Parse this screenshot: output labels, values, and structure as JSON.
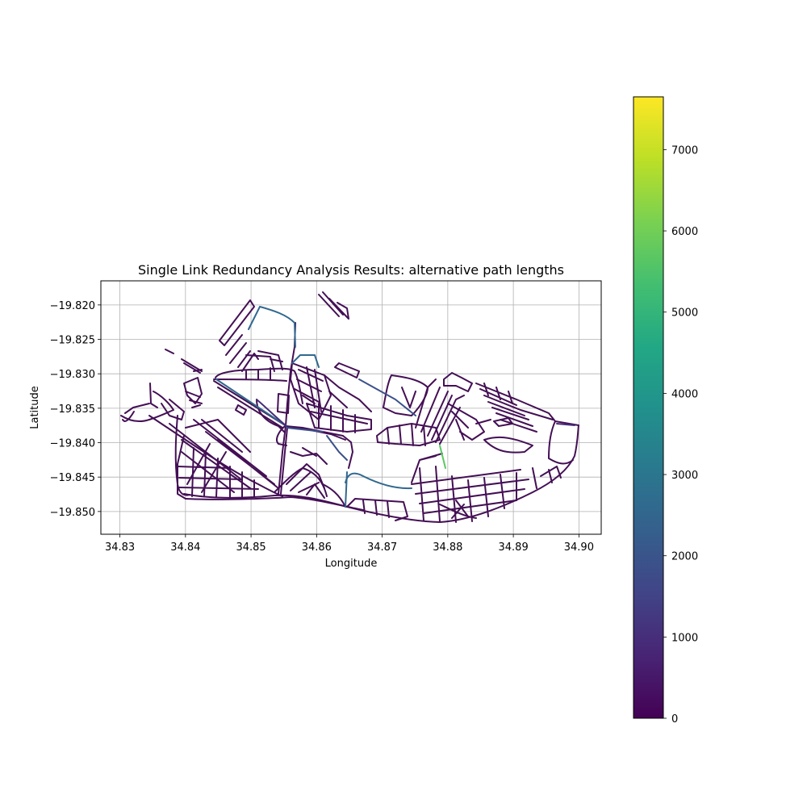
{
  "chart_data": {
    "type": "map",
    "title": "Single Link Redundancy Analysis Results: alternative path lengths",
    "xlabel": "Longitude",
    "ylabel": "Latitude",
    "xlim": [
      34.8271,
      34.9034
    ],
    "ylim": [
      -19.8533,
      -19.8165
    ],
    "grid": true,
    "xticks": [
      {
        "value": 34.83,
        "label": "34.83"
      },
      {
        "value": 34.84,
        "label": "34.84"
      },
      {
        "value": 34.85,
        "label": "34.85"
      },
      {
        "value": 34.86,
        "label": "34.86"
      },
      {
        "value": 34.87,
        "label": "34.87"
      },
      {
        "value": 34.88,
        "label": "34.88"
      },
      {
        "value": 34.89,
        "label": "34.89"
      },
      {
        "value": 34.9,
        "label": "34.90"
      }
    ],
    "yticks": [
      {
        "value": -19.82,
        "label": "−19.820"
      },
      {
        "value": -19.825,
        "label": "−19.825"
      },
      {
        "value": -19.83,
        "label": "−19.830"
      },
      {
        "value": -19.835,
        "label": "−19.835"
      },
      {
        "value": -19.84,
        "label": "−19.840"
      },
      {
        "value": -19.845,
        "label": "−19.845"
      },
      {
        "value": -19.85,
        "label": "−19.850"
      }
    ],
    "colorbar": {
      "colormap": "viridis",
      "min": 0,
      "max": 7650,
      "ticks": [
        {
          "value": 0,
          "label": "0"
        },
        {
          "value": 1000,
          "label": "1000"
        },
        {
          "value": 2000,
          "label": "2000"
        },
        {
          "value": 3000,
          "label": "3000"
        },
        {
          "value": 4000,
          "label": "4000"
        },
        {
          "value": 5000,
          "label": "5000"
        },
        {
          "value": 6000,
          "label": "6000"
        },
        {
          "value": 7000,
          "label": "7000"
        }
      ]
    },
    "colors": {
      "base_link": "#440f55",
      "link_1000": "#472c7a",
      "link_2000": "#3b518b",
      "link_2500": "#31688e",
      "link_6000": "#5ac864"
    }
  }
}
